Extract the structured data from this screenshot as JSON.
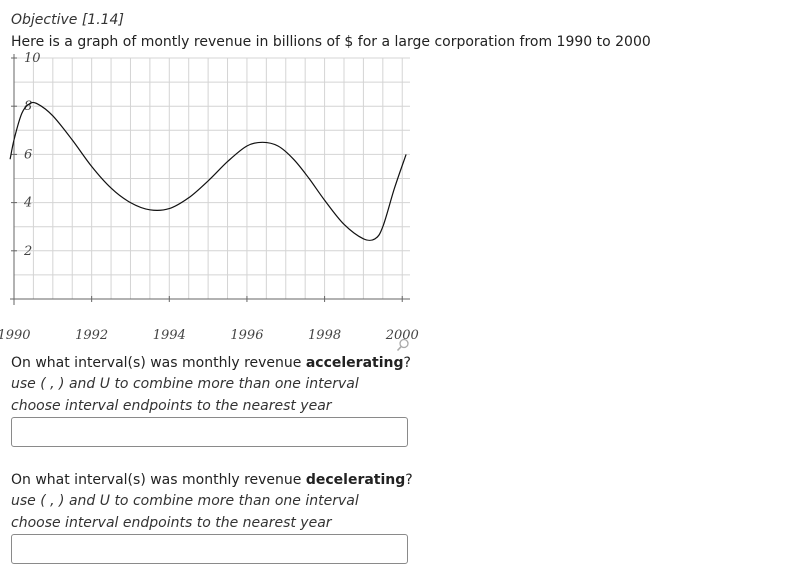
{
  "header": {
    "objective": "Objective [1.14]",
    "intro": "Here is a graph of montly revenue in billions of $ for a large corporation from 1990 to 2000"
  },
  "graph": {
    "y_tick_labels": [
      "2",
      "4",
      "6",
      "8",
      "10"
    ],
    "x_tick_labels": [
      "1990",
      "1992",
      "1994",
      "1996",
      "1998",
      "2000"
    ],
    "icon": "magnify-icon"
  },
  "questions": [
    {
      "prefix": "On what interval(s) was monthly revenue ",
      "keyword": "accelerating",
      "suffix": "?",
      "hint1": "use ( , ) and U to combine more than one interval",
      "hint2": "choose interval endpoints to the nearest year",
      "value": "",
      "placeholder": ""
    },
    {
      "prefix": "On what interval(s) was monthly revenue ",
      "keyword": "decelerating",
      "suffix": "?",
      "hint1": "use ( , ) and U to combine more than one interval",
      "hint2": "choose interval endpoints to the nearest year",
      "value": "",
      "placeholder": ""
    }
  ],
  "chart_data": {
    "type": "line",
    "title": "",
    "xlabel": "",
    "ylabel": "",
    "xlim": [
      1990,
      2000.2
    ],
    "ylim": [
      0,
      10
    ],
    "grid": true,
    "series": [
      {
        "x": [
          1989.9,
          1990,
          1990.2,
          1990.4,
          1990.6,
          1991,
          1991.5,
          1992,
          1992.5,
          1993,
          1993.5,
          1994,
          1994.5,
          1995,
          1995.5,
          1996,
          1996.4,
          1996.8,
          1997.2,
          1997.6,
          1998,
          1998.5,
          1999,
          1999.3,
          1999.5,
          1999.8,
          2000.1
        ],
        "y": [
          5.8,
          6.6,
          7.7,
          8.1,
          8.1,
          7.6,
          6.6,
          5.5,
          4.6,
          4.0,
          3.7,
          3.75,
          4.2,
          4.9,
          5.7,
          6.35,
          6.5,
          6.35,
          5.8,
          5.0,
          4.1,
          3.1,
          2.5,
          2.5,
          3.0,
          4.6,
          6.0
        ]
      }
    ]
  }
}
